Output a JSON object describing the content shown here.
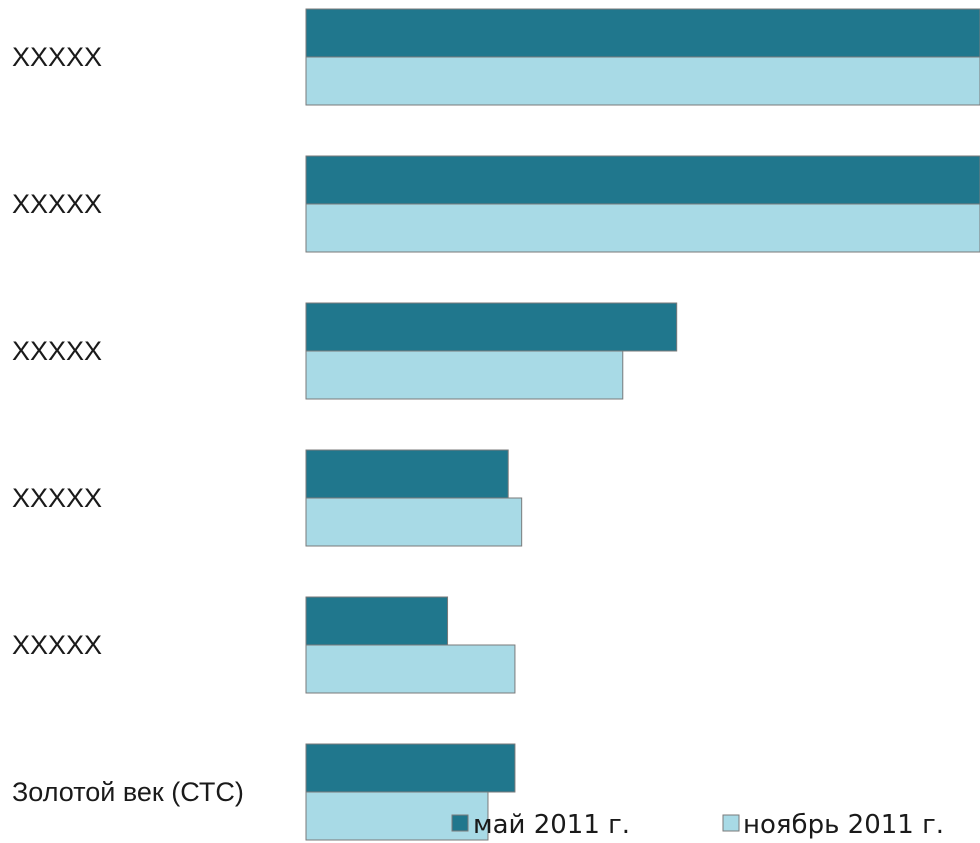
{
  "chart_data": {
    "type": "bar",
    "orientation": "horizontal",
    "categories": [
      "XXXXX",
      "XXXXX",
      "XXXXX",
      "XXXXX",
      "XXXXX",
      "Золотой век (СТС)"
    ],
    "series": [
      {
        "name": "май 2011 г.",
        "color": "#20778d",
        "values": [
          100,
          100,
          55,
          30,
          21,
          31
        ]
      },
      {
        "name": "ноябрь 2011 г.",
        "color": "#a8dae6",
        "values": [
          100,
          100,
          47,
          32,
          31,
          27
        ]
      }
    ],
    "xlim": [
      0,
      100
    ],
    "grid": false,
    "legend": "bottom-right",
    "title": "",
    "xlabel": "",
    "ylabel": ""
  }
}
